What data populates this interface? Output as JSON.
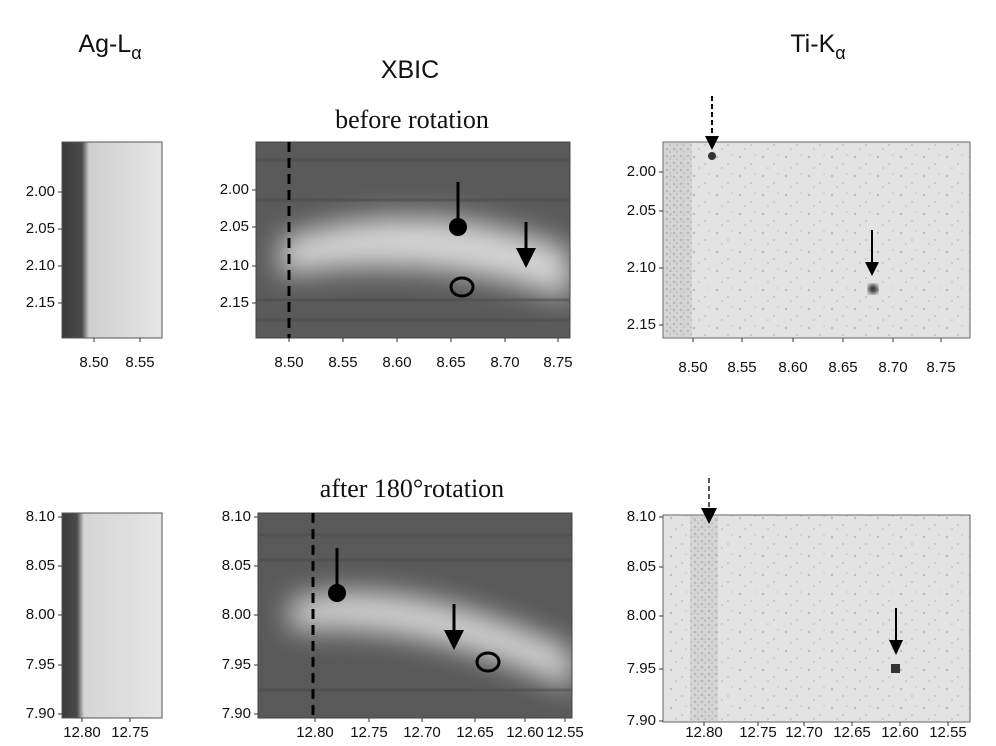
{
  "columns": [
    {
      "main": "Ag-L",
      "sub": "α"
    },
    {
      "main": "XBIC"
    },
    {
      "main": "Ti-K",
      "sub": "α"
    }
  ],
  "rows": [
    "before rotation",
    "after 180°rotation"
  ],
  "panels": [
    {
      "xticks": [
        "8.50",
        "8.55"
      ],
      "yticks": [
        "2.00",
        "2.05",
        "2.10",
        "2.15"
      ]
    },
    {
      "xticks": [
        "8.50",
        "8.55",
        "8.60",
        "8.65",
        "8.70",
        "8.75"
      ],
      "yticks": [
        "2.00",
        "2.05",
        "2.10",
        "2.15"
      ]
    },
    {
      "xticks": [
        "8.50",
        "8.55",
        "8.60",
        "8.65",
        "8.70",
        "8.75"
      ],
      "yticks": [
        "2.00",
        "2.05",
        "2.10",
        "2.15"
      ]
    },
    {
      "xticks": [
        "12.80",
        "12.75"
      ],
      "yticks": [
        "8.10",
        "8.05",
        "8.00",
        "7.95",
        "7.90"
      ]
    },
    {
      "xticks": [
        "12.80",
        "12.75",
        "12.70",
        "12.65",
        "12.60",
        "12.55"
      ],
      "yticks": [
        "8.10",
        "8.05",
        "8.00",
        "7.95",
        "7.90"
      ]
    },
    {
      "xticks": [
        "12.80",
        "12.75",
        "12.70",
        "12.65",
        "12.60",
        "12.55"
      ],
      "yticks": [
        "8.10",
        "8.05",
        "8.00",
        "7.95",
        "7.90"
      ]
    }
  ]
}
